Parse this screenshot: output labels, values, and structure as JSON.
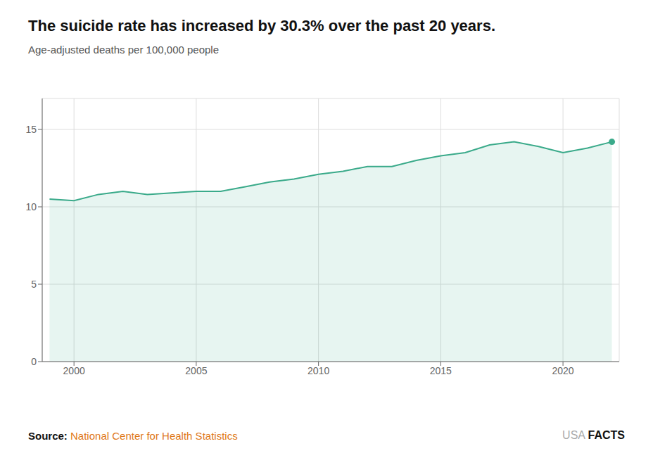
{
  "chart_data": {
    "type": "area",
    "title": "The suicide rate has increased by 30.3% over the past 20 years.",
    "subtitle": "Age-adjusted deaths per 100,000 people",
    "annotations": [
      "Source:",
      "National Center for Health Statistics",
      "USA",
      "FACTS"
    ],
    "x": [
      1999,
      2000,
      2001,
      2002,
      2003,
      2004,
      2005,
      2006,
      2007,
      2008,
      2009,
      2010,
      2011,
      2012,
      2013,
      2014,
      2015,
      2016,
      2017,
      2018,
      2019,
      2020,
      2021,
      2022
    ],
    "values": [
      10.5,
      10.4,
      10.8,
      11.0,
      10.8,
      10.9,
      11.0,
      11.0,
      11.3,
      11.6,
      11.8,
      12.1,
      12.3,
      12.6,
      12.6,
      13.0,
      13.3,
      13.5,
      14.0,
      14.2,
      13.9,
      13.5,
      13.8,
      14.2
    ],
    "color": "#3aaa8a",
    "xlim": [
      1998.7,
      2022.3
    ],
    "xticks": [
      2000,
      2005,
      2010,
      2015,
      2020
    ],
    "ylim": [
      0,
      17
    ],
    "yticks": [
      0,
      5,
      10,
      15
    ],
    "grid": true
  }
}
